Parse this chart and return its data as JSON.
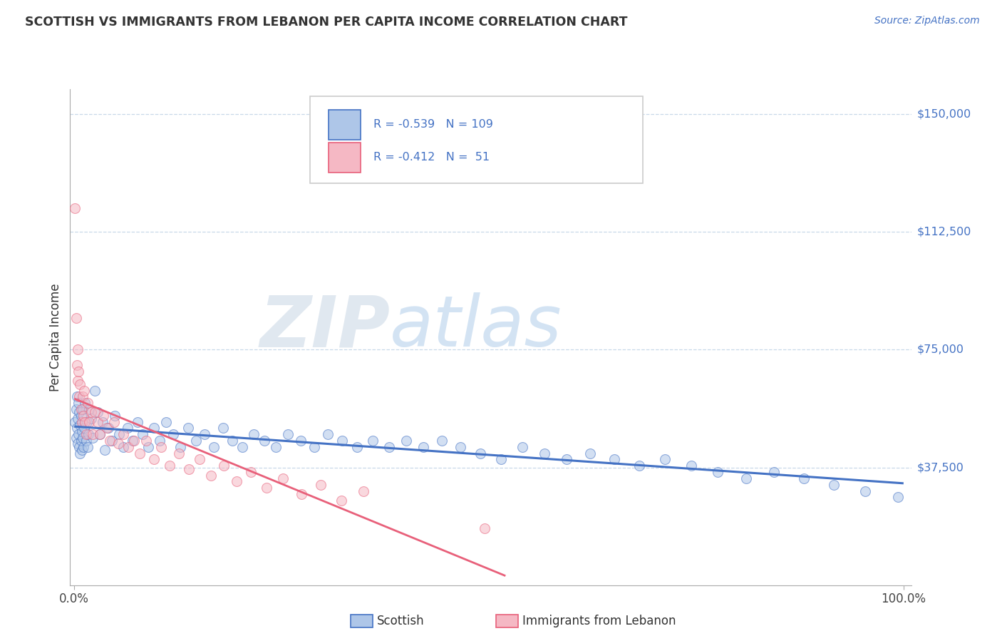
{
  "title": "SCOTTISH VS IMMIGRANTS FROM LEBANON PER CAPITA INCOME CORRELATION CHART",
  "source": "Source: ZipAtlas.com",
  "ylabel": "Per Capita Income",
  "scottish_color": "#4472c4",
  "lebanon_color": "#e8607a",
  "scottish_fill": "#aec6e8",
  "lebanon_fill": "#f5b8c4",
  "watermark_zip": "ZIP",
  "watermark_atlas": "atlas",
  "background_color": "#ffffff",
  "grid_color": "#c8d8e8",
  "title_color": "#333333",
  "right_tick_color": "#4472c4",
  "scatter_alpha": 0.55,
  "scatter_size": 100,
  "ylim_min": 0,
  "ylim_max": 158000,
  "xlim_min": -0.005,
  "xlim_max": 1.01,
  "ytick_vals": [
    37500,
    75000,
    112500,
    150000
  ],
  "ytick_labels": [
    "$37,500",
    "$75,000",
    "$112,500",
    "$150,000"
  ],
  "scottish_x": [
    0.001,
    0.002,
    0.002,
    0.003,
    0.003,
    0.004,
    0.004,
    0.005,
    0.005,
    0.006,
    0.006,
    0.007,
    0.007,
    0.008,
    0.008,
    0.009,
    0.009,
    0.01,
    0.01,
    0.011,
    0.012,
    0.013,
    0.014,
    0.015,
    0.016,
    0.017,
    0.018,
    0.02,
    0.022,
    0.025,
    0.028,
    0.031,
    0.034,
    0.037,
    0.041,
    0.045,
    0.049,
    0.054,
    0.059,
    0.064,
    0.07,
    0.076,
    0.082,
    0.089,
    0.096,
    0.103,
    0.111,
    0.119,
    0.128,
    0.137,
    0.147,
    0.157,
    0.168,
    0.179,
    0.191,
    0.203,
    0.216,
    0.229,
    0.243,
    0.258,
    0.273,
    0.289,
    0.306,
    0.323,
    0.341,
    0.36,
    0.38,
    0.4,
    0.421,
    0.443,
    0.466,
    0.49,
    0.515,
    0.54,
    0.567,
    0.594,
    0.622,
    0.651,
    0.681,
    0.712,
    0.744,
    0.776,
    0.81,
    0.844,
    0.88,
    0.916,
    0.954,
    0.993
  ],
  "scottish_y": [
    52000,
    56000,
    47000,
    50000,
    60000,
    45000,
    53000,
    48000,
    58000,
    44000,
    55000,
    42000,
    51000,
    46000,
    54000,
    43000,
    49000,
    47000,
    56000,
    44000,
    50000,
    58000,
    46000,
    52000,
    44000,
    48000,
    56000,
    53000,
    47000,
    62000,
    55000,
    48000,
    52000,
    43000,
    50000,
    46000,
    54000,
    48000,
    44000,
    50000,
    46000,
    52000,
    48000,
    44000,
    50000,
    46000,
    52000,
    48000,
    44000,
    50000,
    46000,
    48000,
    44000,
    50000,
    46000,
    44000,
    48000,
    46000,
    44000,
    48000,
    46000,
    44000,
    48000,
    46000,
    44000,
    46000,
    44000,
    46000,
    44000,
    46000,
    44000,
    42000,
    40000,
    44000,
    42000,
    40000,
    42000,
    40000,
    38000,
    40000,
    38000,
    36000,
    34000,
    36000,
    34000,
    32000,
    30000,
    28000
  ],
  "lebanon_x": [
    0.001,
    0.002,
    0.003,
    0.004,
    0.004,
    0.005,
    0.006,
    0.007,
    0.008,
    0.009,
    0.01,
    0.011,
    0.012,
    0.013,
    0.014,
    0.016,
    0.018,
    0.02,
    0.022,
    0.025,
    0.028,
    0.031,
    0.035,
    0.039,
    0.043,
    0.048,
    0.053,
    0.059,
    0.065,
    0.072,
    0.079,
    0.087,
    0.096,
    0.105,
    0.115,
    0.126,
    0.138,
    0.151,
    0.165,
    0.18,
    0.196,
    0.213,
    0.232,
    0.252,
    0.274,
    0.297,
    0.322,
    0.349,
    0.495
  ],
  "lebanon_y": [
    120000,
    85000,
    70000,
    75000,
    65000,
    68000,
    60000,
    64000,
    56000,
    52000,
    60000,
    54000,
    62000,
    52000,
    48000,
    58000,
    52000,
    55000,
    48000,
    55000,
    52000,
    48000,
    54000,
    50000,
    46000,
    52000,
    45000,
    48000,
    44000,
    46000,
    42000,
    46000,
    40000,
    44000,
    38000,
    42000,
    37000,
    40000,
    35000,
    38000,
    33000,
    36000,
    31000,
    34000,
    29000,
    32000,
    27000,
    30000,
    18000
  ]
}
